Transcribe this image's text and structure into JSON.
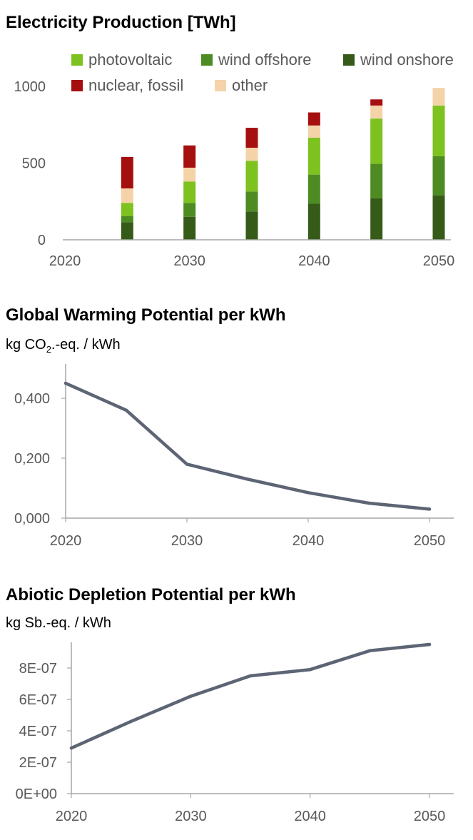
{
  "colors": {
    "photovoltaic": "#7dc21f",
    "wind_offshore": "#4e8b22",
    "wind_onshore": "#365b18",
    "nuclear_fossil": "#a50f0f",
    "other": "#f4d3a8",
    "line": "#5d6474",
    "axis": "#a6a6a6"
  },
  "chart_data": [
    {
      "type": "bar",
      "stacked": true,
      "title": "Electricity Production [TWh]",
      "categories": [
        "2025",
        "2030",
        "2035",
        "2040",
        "2045",
        "2050"
      ],
      "x_values": [
        2025,
        2030,
        2035,
        2040,
        2045,
        2050
      ],
      "x_ticks": [
        "2020",
        "2030",
        "2040",
        "2050"
      ],
      "x_range": [
        2020,
        2050
      ],
      "ylim": [
        0,
        1100
      ],
      "y_ticks": [
        "0",
        "500",
        "1000"
      ],
      "series": [
        {
          "name": "wind onshore",
          "color_key": "wind_onshore",
          "values": [
            115,
            150,
            185,
            235,
            270,
            290
          ]
        },
        {
          "name": "wind offshore",
          "color_key": "wind_offshore",
          "values": [
            40,
            90,
            130,
            190,
            225,
            255
          ]
        },
        {
          "name": "photovoltaic",
          "color_key": "photovoltaic",
          "values": [
            85,
            140,
            200,
            240,
            295,
            330
          ]
        },
        {
          "name": "other",
          "color_key": "other",
          "values": [
            95,
            90,
            85,
            80,
            85,
            115
          ]
        },
        {
          "name": "nuclear, fossil",
          "color_key": "nuclear_fossil",
          "values": [
            205,
            145,
            130,
            85,
            40,
            0
          ]
        }
      ],
      "legend_rows": [
        [
          "photovoltaic",
          "wind offshore",
          "wind onshore"
        ],
        [
          "nuclear, fossil",
          "other"
        ]
      ]
    },
    {
      "type": "line",
      "title": "Global Warming Potential per kWh",
      "ylabel_prefix": "kg CO",
      "ylabel_sub": "2",
      "ylabel_suffix": ".-eq. / kWh",
      "x": [
        2020,
        2025,
        2030,
        2035,
        2040,
        2045,
        2050
      ],
      "y": [
        0.45,
        0.36,
        0.18,
        0.13,
        0.085,
        0.05,
        0.03
      ],
      "x_ticks": [
        "2020",
        "2030",
        "2040",
        "2050"
      ],
      "x_range": [
        2020,
        2050
      ],
      "ylim": [
        0,
        0.5
      ],
      "y_ticks": [
        "0,000",
        "0,200",
        "0,400"
      ],
      "y_tick_values": [
        0,
        0.2,
        0.4
      ]
    },
    {
      "type": "line",
      "title": "Abiotic Depletion Potential per kWh",
      "ylabel": "kg Sb.-eq. / kWh",
      "x": [
        2020,
        2025,
        2030,
        2035,
        2040,
        2045,
        2050
      ],
      "y": [
        2.9e-07,
        4.6e-07,
        6.2e-07,
        7.5e-07,
        7.9e-07,
        9.1e-07,
        9.5e-07
      ],
      "x_ticks": [
        "2020",
        "2030",
        "2040",
        "2050"
      ],
      "x_range": [
        2020,
        2050
      ],
      "ylim": [
        0,
        1e-06
      ],
      "y_ticks": [
        "0E+00",
        "2E-07",
        "4E-07",
        "6E-07",
        "8E-07"
      ],
      "y_tick_values": [
        0,
        2e-07,
        4e-07,
        6e-07,
        8e-07
      ]
    }
  ]
}
